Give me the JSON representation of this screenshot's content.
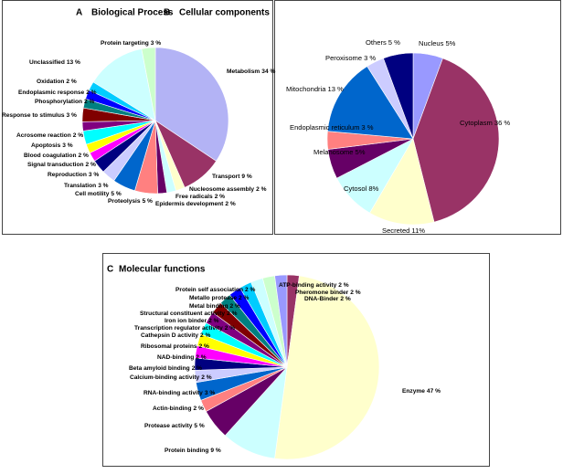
{
  "chart_data": [
    {
      "type": "pie",
      "panel": "A",
      "title": "Biological Process",
      "categories": [
        "Metabolism",
        "Transport",
        "Nucleosome assembly",
        "Free radicals",
        "Epidermis development",
        "Proteolysis",
        "Cell motility",
        "Translation",
        "Reproduction",
        "Signal transduction",
        "Blood coagulation",
        "Apoptosis",
        "Acrosome reaction",
        "Response to stimulus",
        "Phosphorylation",
        "Endoplasmic response",
        "Oxidation",
        "Unclassified",
        "Protein targeting"
      ],
      "values": [
        34,
        9,
        2,
        2,
        2,
        5,
        5,
        3,
        3,
        2,
        2,
        3,
        2,
        3,
        2,
        2,
        2,
        13,
        3
      ],
      "value_labels": [
        "34 %",
        "9 %",
        "2 %",
        "2 %",
        "2 %",
        "5 %",
        "5 %",
        "3 %",
        "3 %",
        "2 %",
        "2 %",
        "3 %",
        "2 %",
        "3 %",
        "2 %",
        "2 %",
        "2 %",
        "13 %",
        "3 %"
      ],
      "colors": [
        "#b3b3f5",
        "#993366",
        "#ffffcc",
        "#ccffff",
        "#660066",
        "#ff8080",
        "#0066cc",
        "#ccccff",
        "#000080",
        "#ff00ff",
        "#ffff00",
        "#00ffff",
        "#800080",
        "#800000",
        "#008080",
        "#0000ff",
        "#00ccff",
        "#ccffff",
        "#ccffcc"
      ]
    },
    {
      "type": "pie",
      "panel": "B",
      "title": "Cellular components",
      "categories": [
        "Nucleus",
        "Cytoplasm",
        "Secreted",
        "Cytosol",
        "Melanosome",
        "Endoplasmic reticulum",
        "Mitochondria",
        "Peroxisome",
        "Others"
      ],
      "values": [
        5,
        36,
        11,
        8,
        5,
        3,
        13,
        3,
        5
      ],
      "value_labels": [
        "5%",
        "36 %",
        "11%",
        "8%",
        "5%",
        "3 %",
        "13 %",
        "3 %",
        "5 %"
      ],
      "colors": [
        "#9999ff",
        "#993366",
        "#ffffcc",
        "#ccffff",
        "#660066",
        "#ff8080",
        "#0066cc",
        "#ccccff",
        "#000080"
      ]
    },
    {
      "type": "pie",
      "panel": "C",
      "title": "Molecular functions",
      "categories": [
        "DNA-Binder",
        "Enzyme",
        "Protein binding",
        "Protease activity",
        "Actin-binding",
        "RNA-binding activity",
        "Calcium-binding activity",
        "Beta amyloid binding",
        "NAD-binding",
        "Ribosomal proteins",
        "Cathepsin D activity",
        "Transcription regulator activity",
        "Iron ion binder",
        "Structural constituent activity",
        "Metal binding",
        "Metallo protease",
        "Protein self association",
        "ATP-binding activity",
        "Pheromone binder"
      ],
      "values": [
        2,
        47,
        9,
        5,
        2,
        3,
        2,
        2,
        2,
        2,
        2,
        2,
        2,
        2,
        2,
        2,
        2,
        2,
        2
      ],
      "value_labels": [
        "2 %",
        "47 %",
        "9 %",
        "5 %",
        "2 %",
        "3 %",
        "2 %",
        "2 %",
        "2 %",
        "2 %",
        "2 %",
        "2 %",
        "2 %",
        "2 %",
        "2 %",
        "2 %",
        "2 %",
        "2 %",
        "2 %"
      ],
      "colors": [
        "#993366",
        "#ffffcc",
        "#ccffff",
        "#660066",
        "#ff8080",
        "#0066cc",
        "#ccccff",
        "#000080",
        "#ff00ff",
        "#ffff00",
        "#00ffff",
        "#800080",
        "#800000",
        "#008080",
        "#0000ff",
        "#00ccff",
        "#ccffff",
        "#ccffcc",
        "#9999ff"
      ]
    }
  ]
}
